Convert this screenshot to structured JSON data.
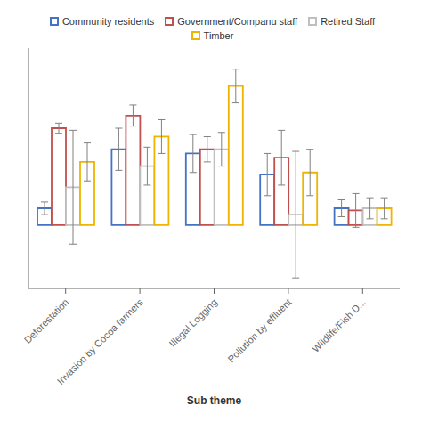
{
  "chart_data": {
    "type": "bar",
    "categories": [
      "Deforestation",
      "Invasion by Cocoa farmers",
      "Illegal Logging",
      "Pollution by effluent",
      "Wildlife/Fish D..."
    ],
    "series": [
      {
        "name": "Community residents",
        "color": "#4472C4",
        "values": [
          0.4,
          1.8,
          1.7,
          1.2,
          0.4
        ],
        "errors": [
          0.15,
          0.5,
          0.45,
          0.5,
          0.2
        ]
      },
      {
        "name": "Government/Companu staff",
        "color": "#C0504D",
        "values": [
          2.3,
          2.6,
          1.8,
          1.6,
          0.35
        ],
        "errors": [
          0.12,
          0.25,
          0.3,
          0.65,
          0.4
        ]
      },
      {
        "name": "Retired Staff",
        "color": "#BFBFBF",
        "values": [
          0.9,
          1.4,
          1.8,
          0.25,
          0.4
        ],
        "errors": [
          1.35,
          0.45,
          0.4,
          1.5,
          0.25
        ]
      },
      {
        "name": "Timber",
        "color": "#F0B400",
        "values": [
          1.5,
          2.1,
          3.3,
          1.25,
          0.4
        ],
        "errors": [
          0.45,
          0.4,
          0.4,
          0.55,
          0.25
        ]
      }
    ],
    "xlabel": "Sub theme",
    "ylim": [
      -1.5,
      4.2
    ],
    "tick_labels": "x",
    "grid": false,
    "legend": "top"
  }
}
